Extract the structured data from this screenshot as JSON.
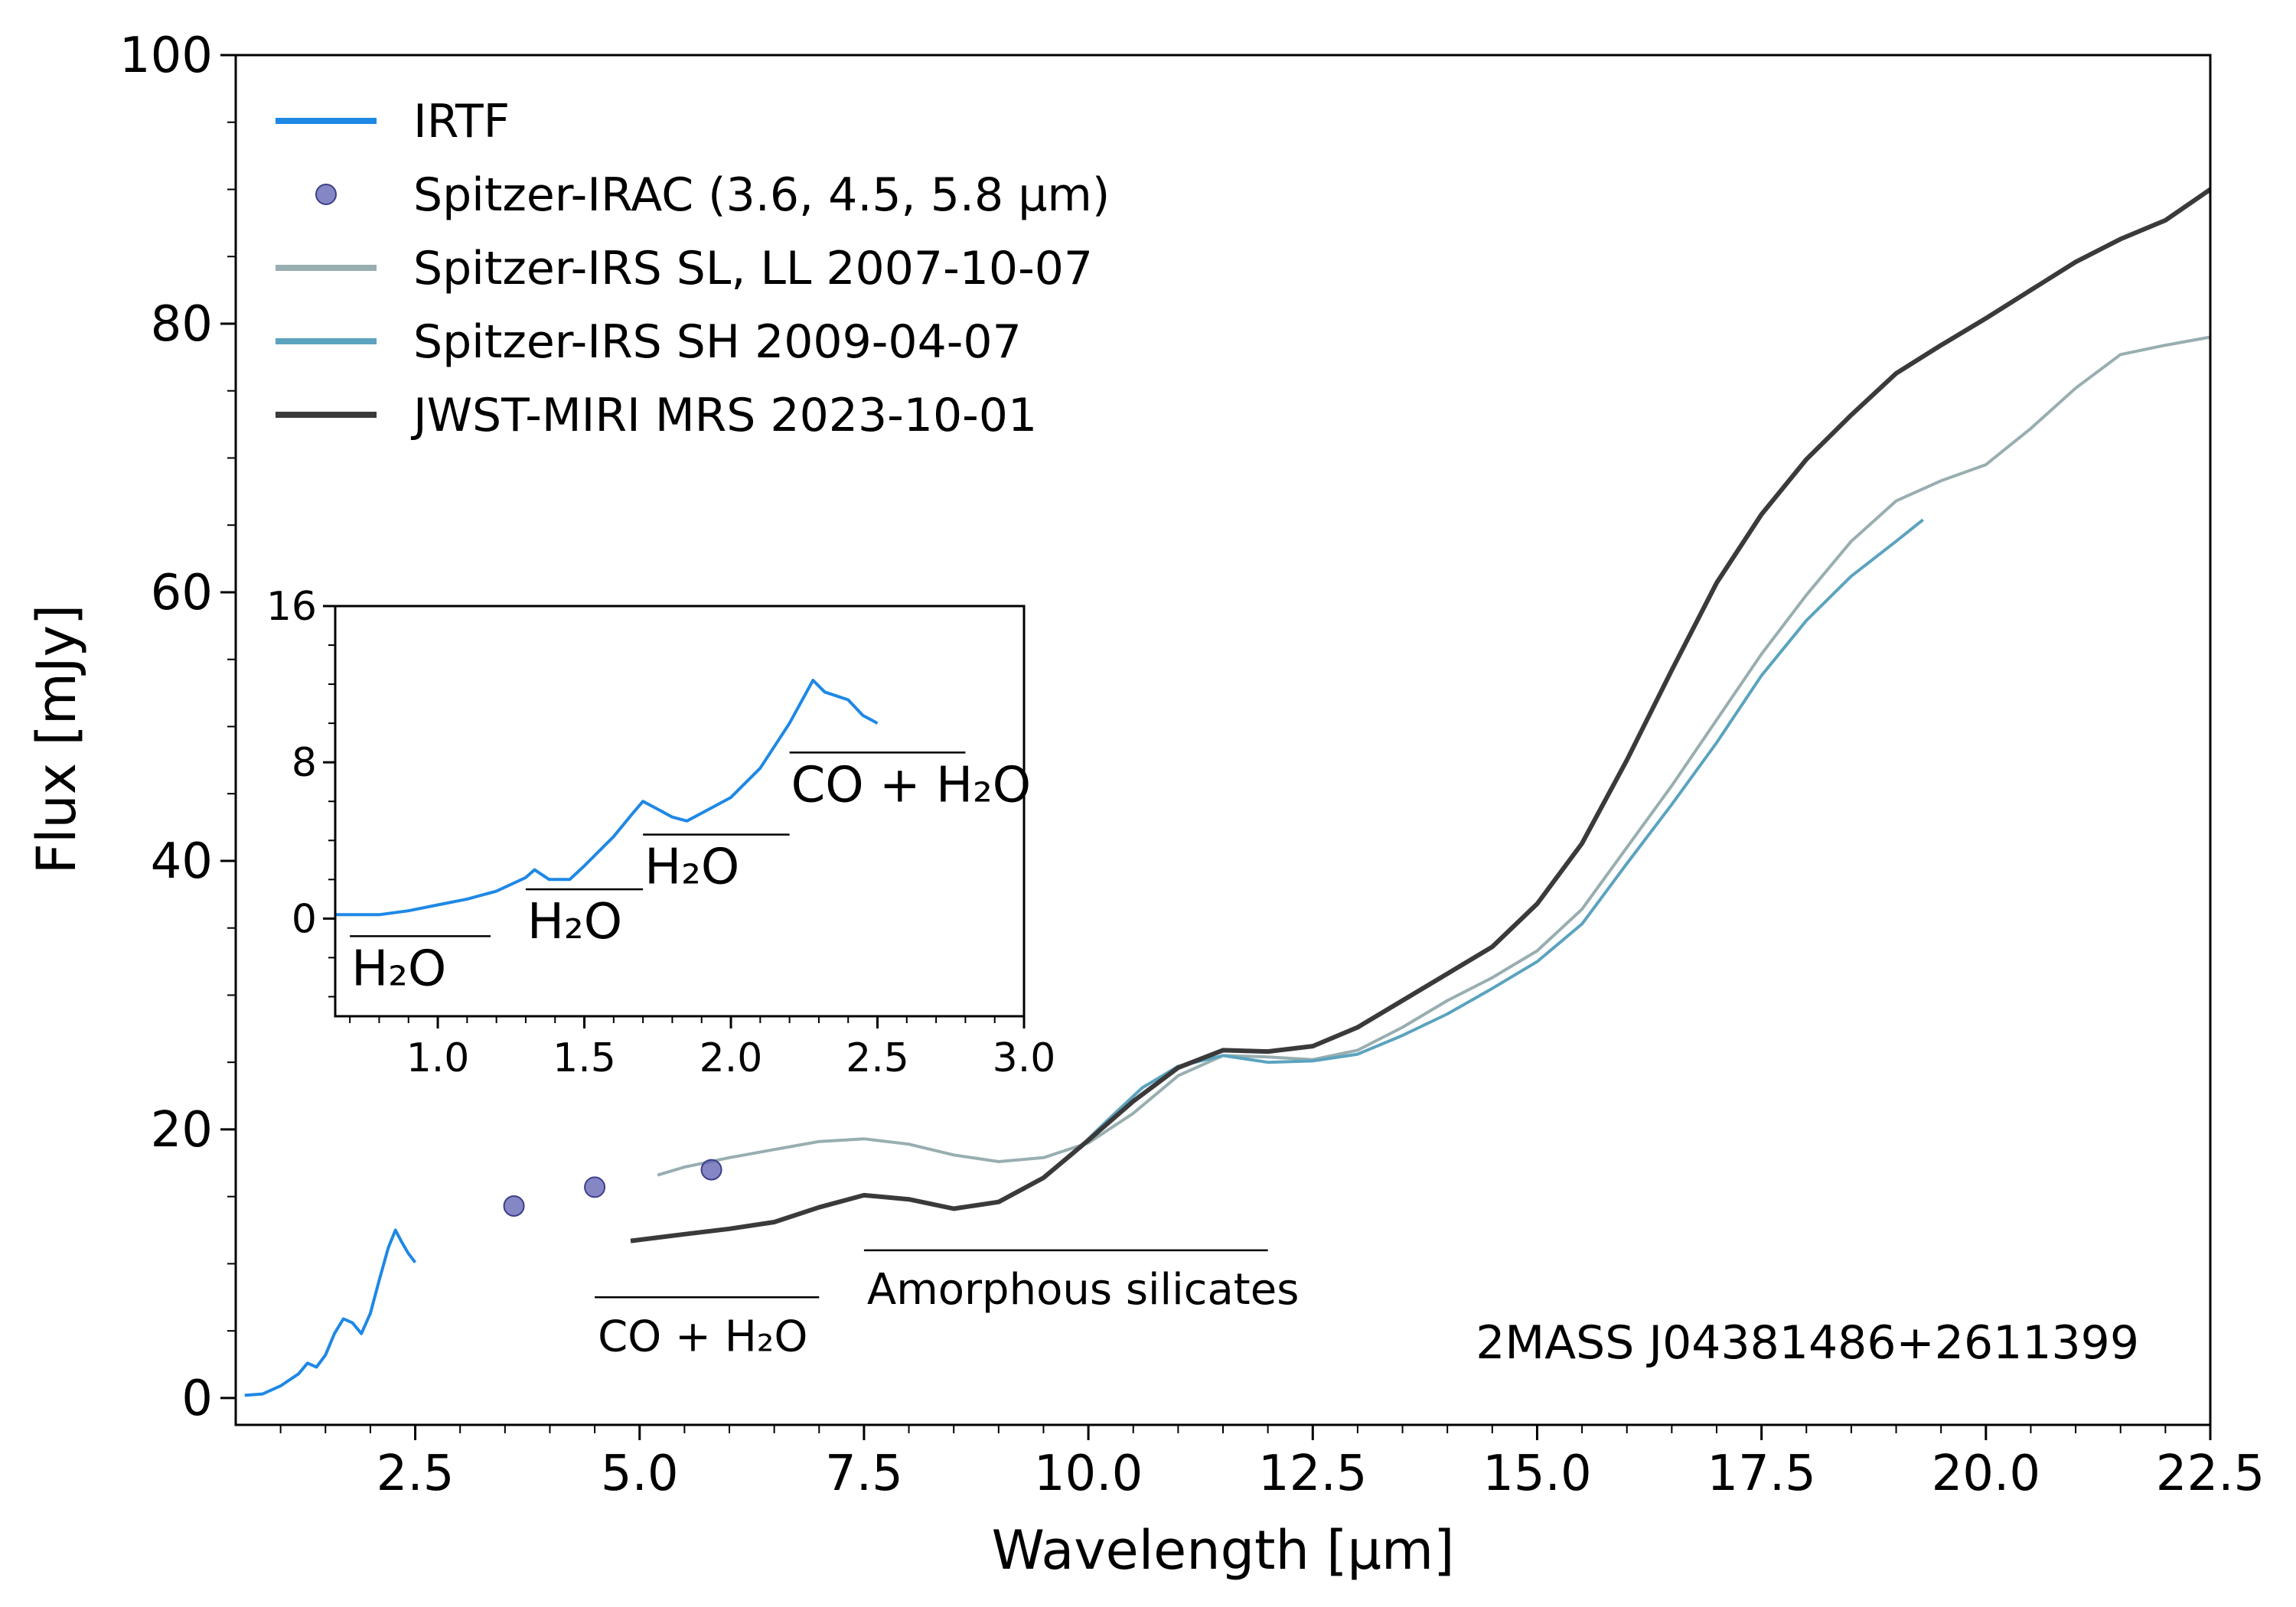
{
  "chart_data": {
    "type": "line",
    "title": "",
    "xlabel": "Wavelength [μm]",
    "ylabel": "Flux [mJy]",
    "xlim": [
      0.5,
      22.5
    ],
    "ylim": [
      -2,
      100
    ],
    "xticks": [
      "2.5",
      "5.0",
      "7.5",
      "10.0",
      "12.5",
      "15.0",
      "17.5",
      "20.0",
      "22.5"
    ],
    "yticks": [
      "0",
      "20",
      "40",
      "60",
      "80",
      "100"
    ],
    "target": "2MASS J04381486+2611399",
    "legend": {
      "position": "upper-left",
      "entries": [
        {
          "label": "IRTF",
          "color": "#1e88e5"
        },
        {
          "label": "Spitzer-IRAC (3.6, 4.5, 5.8 μm)",
          "color": "#5c5fb0"
        },
        {
          "label": "Spitzer-IRS SL, LL 2007-10-07",
          "color": "#98aeb0"
        },
        {
          "label": "Spitzer-IRS SH 2009-04-07",
          "color": "#5ba3bf"
        },
        {
          "label": "JWST-MIRI MRS 2023-10-01",
          "color": "#3a3a3a"
        }
      ]
    },
    "series": [
      {
        "name": "IRTF",
        "color": "#1e88e5",
        "points": [
          [
            0.6,
            0.2
          ],
          [
            0.8,
            0.3
          ],
          [
            1.0,
            0.9
          ],
          [
            1.2,
            1.8
          ],
          [
            1.3,
            2.6
          ],
          [
            1.4,
            2.3
          ],
          [
            1.5,
            3.2
          ],
          [
            1.6,
            4.8
          ],
          [
            1.7,
            5.9
          ],
          [
            1.8,
            5.6
          ],
          [
            1.9,
            4.8
          ],
          [
            2.0,
            6.3
          ],
          [
            2.1,
            8.8
          ],
          [
            2.2,
            11.2
          ],
          [
            2.28,
            12.5
          ],
          [
            2.35,
            11.6
          ],
          [
            2.42,
            10.8
          ],
          [
            2.5,
            10.1
          ]
        ]
      },
      {
        "name": "Spitzer-IRS SL, LL 2007-10-07",
        "color": "#98aeb0",
        "points": [
          [
            5.2,
            16.6
          ],
          [
            5.5,
            17.2
          ],
          [
            6.0,
            17.9
          ],
          [
            6.5,
            18.5
          ],
          [
            7.0,
            19.1
          ],
          [
            7.5,
            19.3
          ],
          [
            8.0,
            18.9
          ],
          [
            8.5,
            18.1
          ],
          [
            9.0,
            17.6
          ],
          [
            9.5,
            17.9
          ],
          [
            10.0,
            19.0
          ],
          [
            10.5,
            21.2
          ],
          [
            11.0,
            24.0
          ],
          [
            11.5,
            25.5
          ],
          [
            12.0,
            25.4
          ],
          [
            12.5,
            25.2
          ],
          [
            13.0,
            25.9
          ],
          [
            13.5,
            27.6
          ],
          [
            14.0,
            29.6
          ],
          [
            14.5,
            31.3
          ],
          [
            15.0,
            33.3
          ],
          [
            15.5,
            36.4
          ],
          [
            16.0,
            41.0
          ],
          [
            16.5,
            45.6
          ],
          [
            17.0,
            50.5
          ],
          [
            17.5,
            55.4
          ],
          [
            18.0,
            59.8
          ],
          [
            18.5,
            63.8
          ],
          [
            19.0,
            66.8
          ],
          [
            19.5,
            68.3
          ],
          [
            20.0,
            69.5
          ],
          [
            20.5,
            72.2
          ],
          [
            21.0,
            75.2
          ],
          [
            21.5,
            77.7
          ],
          [
            22.0,
            78.4
          ],
          [
            22.5,
            79.0
          ]
        ]
      },
      {
        "name": "Spitzer-IRS SH 2009-04-07",
        "color": "#5ba3bf",
        "points": [
          [
            9.8,
            18.0
          ],
          [
            10.2,
            20.6
          ],
          [
            10.6,
            23.1
          ],
          [
            11.0,
            24.7
          ],
          [
            11.5,
            25.5
          ],
          [
            12.0,
            25.0
          ],
          [
            12.5,
            25.1
          ],
          [
            13.0,
            25.6
          ],
          [
            13.5,
            27.0
          ],
          [
            14.0,
            28.6
          ],
          [
            14.5,
            30.5
          ],
          [
            15.0,
            32.5
          ],
          [
            15.5,
            35.3
          ],
          [
            16.0,
            39.8
          ],
          [
            16.5,
            44.2
          ],
          [
            17.0,
            48.8
          ],
          [
            17.5,
            53.8
          ],
          [
            18.0,
            57.9
          ],
          [
            18.5,
            61.2
          ],
          [
            19.0,
            63.8
          ],
          [
            19.3,
            65.4
          ]
        ]
      },
      {
        "name": "JWST-MIRI MRS 2023-10-01",
        "color": "#3a3a3a",
        "points": [
          [
            4.9,
            11.7
          ],
          [
            5.5,
            12.2
          ],
          [
            6.0,
            12.6
          ],
          [
            6.5,
            13.1
          ],
          [
            7.0,
            14.2
          ],
          [
            7.5,
            15.1
          ],
          [
            8.0,
            14.8
          ],
          [
            8.5,
            14.1
          ],
          [
            9.0,
            14.6
          ],
          [
            9.5,
            16.4
          ],
          [
            10.0,
            19.2
          ],
          [
            10.5,
            22.1
          ],
          [
            11.0,
            24.6
          ],
          [
            11.5,
            25.9
          ],
          [
            12.0,
            25.8
          ],
          [
            12.5,
            26.2
          ],
          [
            13.0,
            27.6
          ],
          [
            13.5,
            29.6
          ],
          [
            14.0,
            31.6
          ],
          [
            14.5,
            33.6
          ],
          [
            15.0,
            36.8
          ],
          [
            15.5,
            41.3
          ],
          [
            16.0,
            47.5
          ],
          [
            16.5,
            54.2
          ],
          [
            17.0,
            60.7
          ],
          [
            17.5,
            65.8
          ],
          [
            18.0,
            69.9
          ],
          [
            18.5,
            73.2
          ],
          [
            19.0,
            76.3
          ],
          [
            19.5,
            78.4
          ],
          [
            20.0,
            80.4
          ],
          [
            20.5,
            82.5
          ],
          [
            21.0,
            84.6
          ],
          [
            21.5,
            86.3
          ],
          [
            22.0,
            87.7
          ],
          [
            22.5,
            90.0
          ]
        ]
      }
    ],
    "points": {
      "name": "Spitzer-IRAC (3.6, 4.5, 5.8 μm)",
      "color": "#5c5fb0",
      "x": [
        3.6,
        4.5,
        5.8
      ],
      "y": [
        14.3,
        15.7,
        17.0
      ]
    },
    "annotations": [
      {
        "text": "Amorphous silicates",
        "x_range": [
          7.5,
          12.0
        ],
        "y": 11.0
      },
      {
        "text": "CO + H₂O",
        "x_range": [
          4.5,
          7.0
        ],
        "y": 7.5
      }
    ],
    "inset": {
      "xlim": [
        0.65,
        3.0
      ],
      "ylim": [
        -5,
        16
      ],
      "xticks": [
        "1.0",
        "1.5",
        "2.0",
        "2.5",
        "3.0"
      ],
      "yticks": [
        "0",
        "8",
        "16"
      ],
      "series": {
        "name": "IRTF",
        "color": "#1e88e5",
        "points": [
          [
            0.65,
            0.2
          ],
          [
            0.8,
            0.2
          ],
          [
            0.9,
            0.4
          ],
          [
            1.0,
            0.7
          ],
          [
            1.1,
            1.0
          ],
          [
            1.2,
            1.4
          ],
          [
            1.3,
            2.1
          ],
          [
            1.33,
            2.5
          ],
          [
            1.38,
            2.0
          ],
          [
            1.45,
            2.0
          ],
          [
            1.5,
            2.7
          ],
          [
            1.6,
            4.2
          ],
          [
            1.66,
            5.3
          ],
          [
            1.7,
            6.0
          ],
          [
            1.75,
            5.6
          ],
          [
            1.8,
            5.2
          ],
          [
            1.85,
            5.0
          ],
          [
            1.9,
            5.4
          ],
          [
            2.0,
            6.2
          ],
          [
            2.1,
            7.7
          ],
          [
            2.2,
            10.0
          ],
          [
            2.28,
            12.2
          ],
          [
            2.32,
            11.6
          ],
          [
            2.4,
            11.2
          ],
          [
            2.45,
            10.4
          ],
          [
            2.5,
            10.0
          ]
        ]
      },
      "bands": [
        {
          "text": "H₂O",
          "x_range": [
            0.7,
            1.18
          ],
          "y": -0.9
        },
        {
          "text": "H₂O",
          "x_range": [
            1.3,
            1.7
          ],
          "y": 1.5
        },
        {
          "text": "H₂O",
          "x_range": [
            1.7,
            2.2
          ],
          "y": 4.3
        },
        {
          "text": "CO + H₂O",
          "x_range": [
            2.2,
            2.8
          ],
          "y": 8.5
        }
      ]
    }
  }
}
